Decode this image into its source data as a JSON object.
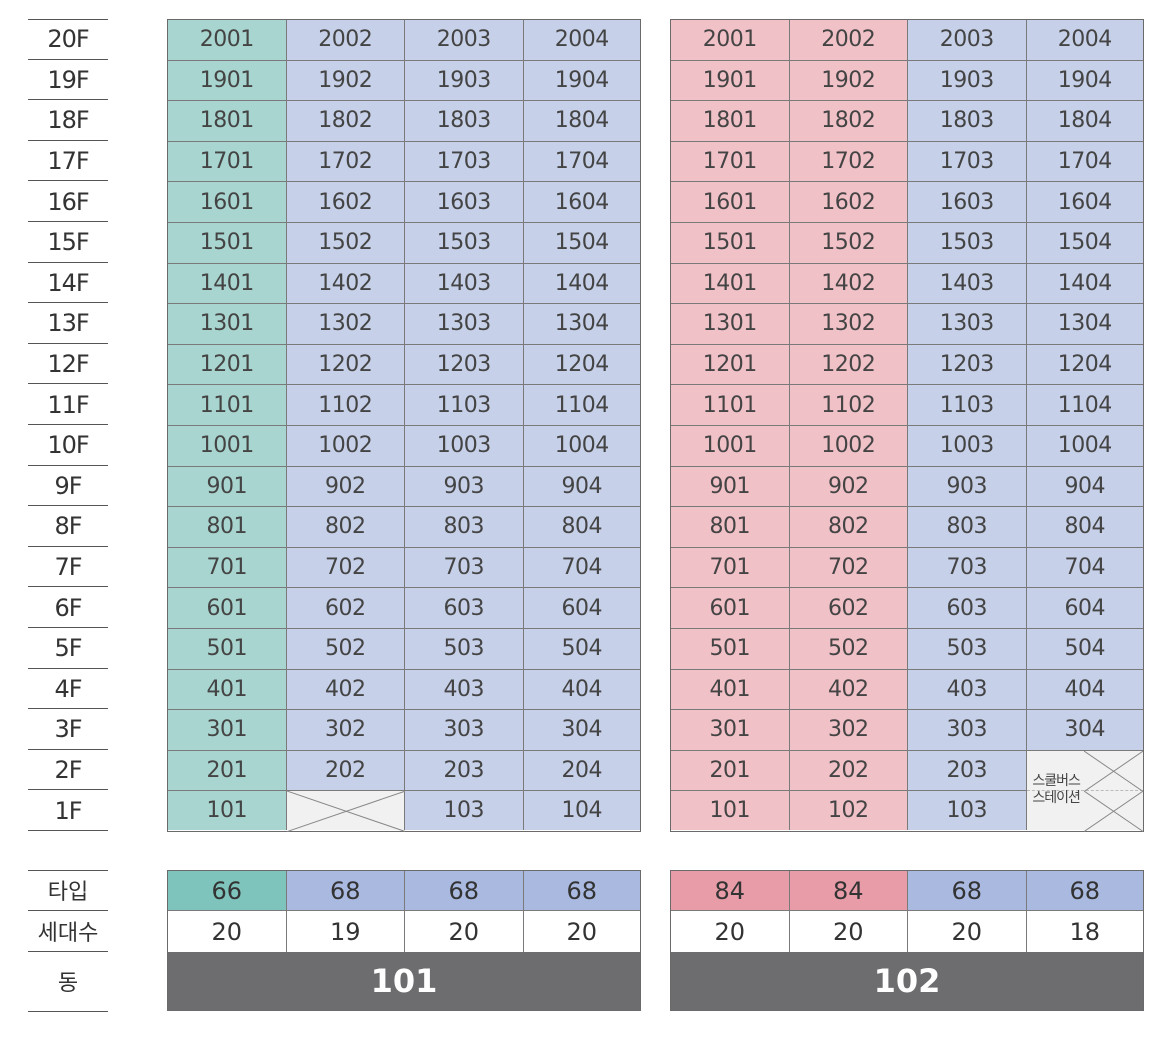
{
  "floors": [
    "20F",
    "19F",
    "18F",
    "17F",
    "16F",
    "15F",
    "14F",
    "13F",
    "12F",
    "11F",
    "10F",
    "9F",
    "8F",
    "7F",
    "6F",
    "5F",
    "4F",
    "3F",
    "2F",
    "1F"
  ],
  "summary_labels": {
    "type": "타입",
    "households": "세대수",
    "building": "동"
  },
  "buildings": [
    {
      "name": "101",
      "columns": [
        {
          "line": "01",
          "type": "66",
          "households": "20",
          "color": "#a8d5cf",
          "type_color": "#7ec4bd"
        },
        {
          "line": "02",
          "type": "68",
          "households": "19",
          "color": "#c6d0e8",
          "type_color": "#a9b9e0"
        },
        {
          "line": "03",
          "type": "68",
          "households": "20",
          "color": "#c6d0e8",
          "type_color": "#a9b9e0"
        },
        {
          "line": "04",
          "type": "68",
          "households": "20",
          "color": "#c6d0e8",
          "type_color": "#a9b9e0"
        }
      ],
      "empty_units": [
        "102"
      ]
    },
    {
      "name": "102",
      "columns": [
        {
          "line": "01",
          "type": "84",
          "households": "20",
          "color": "#f1c1c8",
          "type_color": "#e89ca8"
        },
        {
          "line": "02",
          "type": "84",
          "households": "20",
          "color": "#f1c1c8",
          "type_color": "#e89ca8"
        },
        {
          "line": "03",
          "type": "68",
          "households": "20",
          "color": "#c6d0e8",
          "type_color": "#a9b9e0"
        },
        {
          "line": "04",
          "type": "68",
          "households": "18",
          "color": "#c6d0e8",
          "type_color": "#a9b9e0"
        }
      ],
      "station": {
        "units": [
          "204",
          "104"
        ],
        "label_line1": "스쿨버스",
        "label_line2": "스테이션"
      }
    }
  ]
}
